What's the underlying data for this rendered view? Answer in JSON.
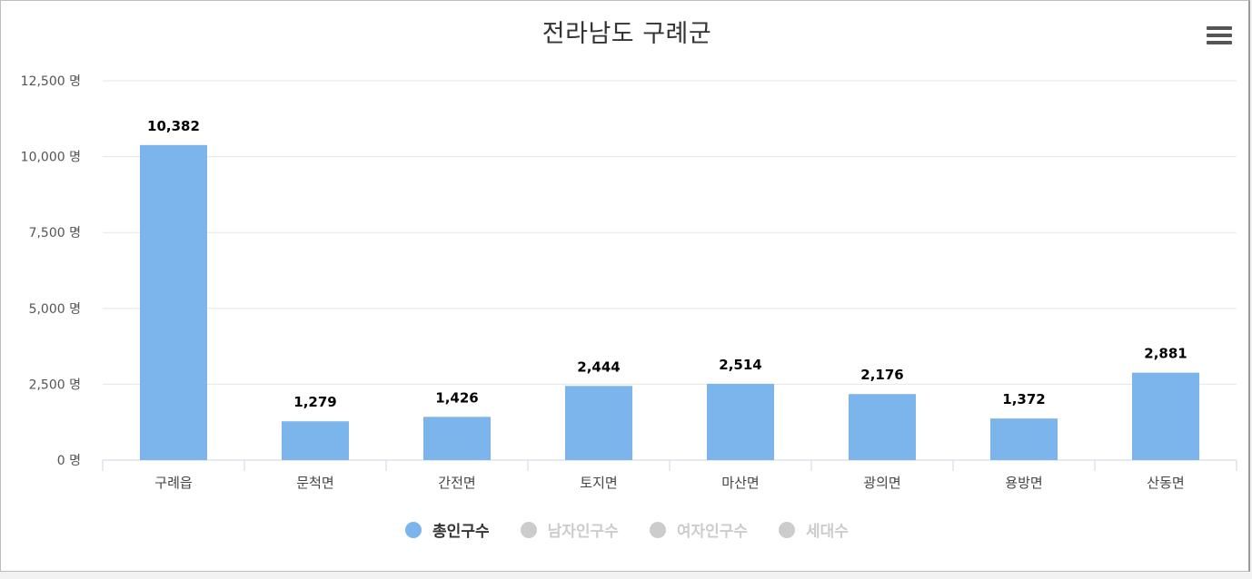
{
  "title": "전라남도 구례군",
  "menu_icon": "hamburger-menu-icon",
  "colors": {
    "bar": "#7cb5ec",
    "grid": "#e6e6e6",
    "axis": "#ccd6eb",
    "legend_active": "#333333",
    "legend_inactive": "#cccccc"
  },
  "legend": [
    {
      "label": "총인구수",
      "active": true,
      "color": "#7cb5ec"
    },
    {
      "label": "남자인구수",
      "active": false,
      "color": "#cccccc"
    },
    {
      "label": "여자인구수",
      "active": false,
      "color": "#cccccc"
    },
    {
      "label": "세대수",
      "active": false,
      "color": "#cccccc"
    }
  ],
  "chart_data": {
    "type": "bar",
    "title": "전라남도 구례군",
    "categories": [
      "구례읍",
      "문척면",
      "간전면",
      "토지면",
      "마산면",
      "광의면",
      "용방면",
      "산동면"
    ],
    "series": [
      {
        "name": "총인구수",
        "values": [
          10382,
          1279,
          1426,
          2444,
          2514,
          2176,
          1372,
          2881
        ]
      }
    ],
    "value_labels": [
      "10,382",
      "1,279",
      "1,426",
      "2,444",
      "2,514",
      "2,176",
      "1,372",
      "2,881"
    ],
    "ylim": [
      0,
      12500
    ],
    "yticks": [
      0,
      2500,
      5000,
      7500,
      10000,
      12500
    ],
    "ytick_labels": [
      "0 명",
      "2,500 명",
      "5,000 명",
      "7,500 명",
      "10,000 명",
      "12,500 명"
    ],
    "grid": true,
    "legend_position": "bottom"
  }
}
